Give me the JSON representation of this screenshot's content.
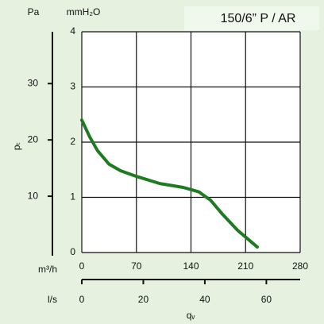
{
  "chart_data": {
    "type": "line",
    "title": "150/6” P / AR",
    "x_label": "qᵥ",
    "y_label": "pₜ",
    "x": [
      0,
      10,
      20,
      35,
      50,
      70,
      100,
      130,
      150,
      165,
      180,
      200,
      225
    ],
    "series": [
      {
        "color": "#1f7a22",
        "values": [
          2.4,
          2.1,
          1.85,
          1.6,
          1.48,
          1.38,
          1.25,
          1.18,
          1.1,
          0.95,
          0.7,
          0.4,
          0.1
        ]
      }
    ],
    "xlim": [
      0,
      280
    ],
    "xticks": [
      0,
      70,
      140,
      210,
      280
    ],
    "x_unit": "m³/h",
    "ylim": [
      0,
      4
    ],
    "yticks": [
      0,
      1,
      2,
      3,
      4
    ],
    "y_unit": "mmH₂O",
    "y2lim": [
      0,
      39.2
    ],
    "y2ticks": [
      10,
      20,
      30
    ],
    "y2_unit": "Pa",
    "x2lim": [
      0,
      71
    ],
    "x2ticks": [
      0,
      20,
      40,
      60
    ],
    "x2_unit": "l/s",
    "grid": true
  }
}
